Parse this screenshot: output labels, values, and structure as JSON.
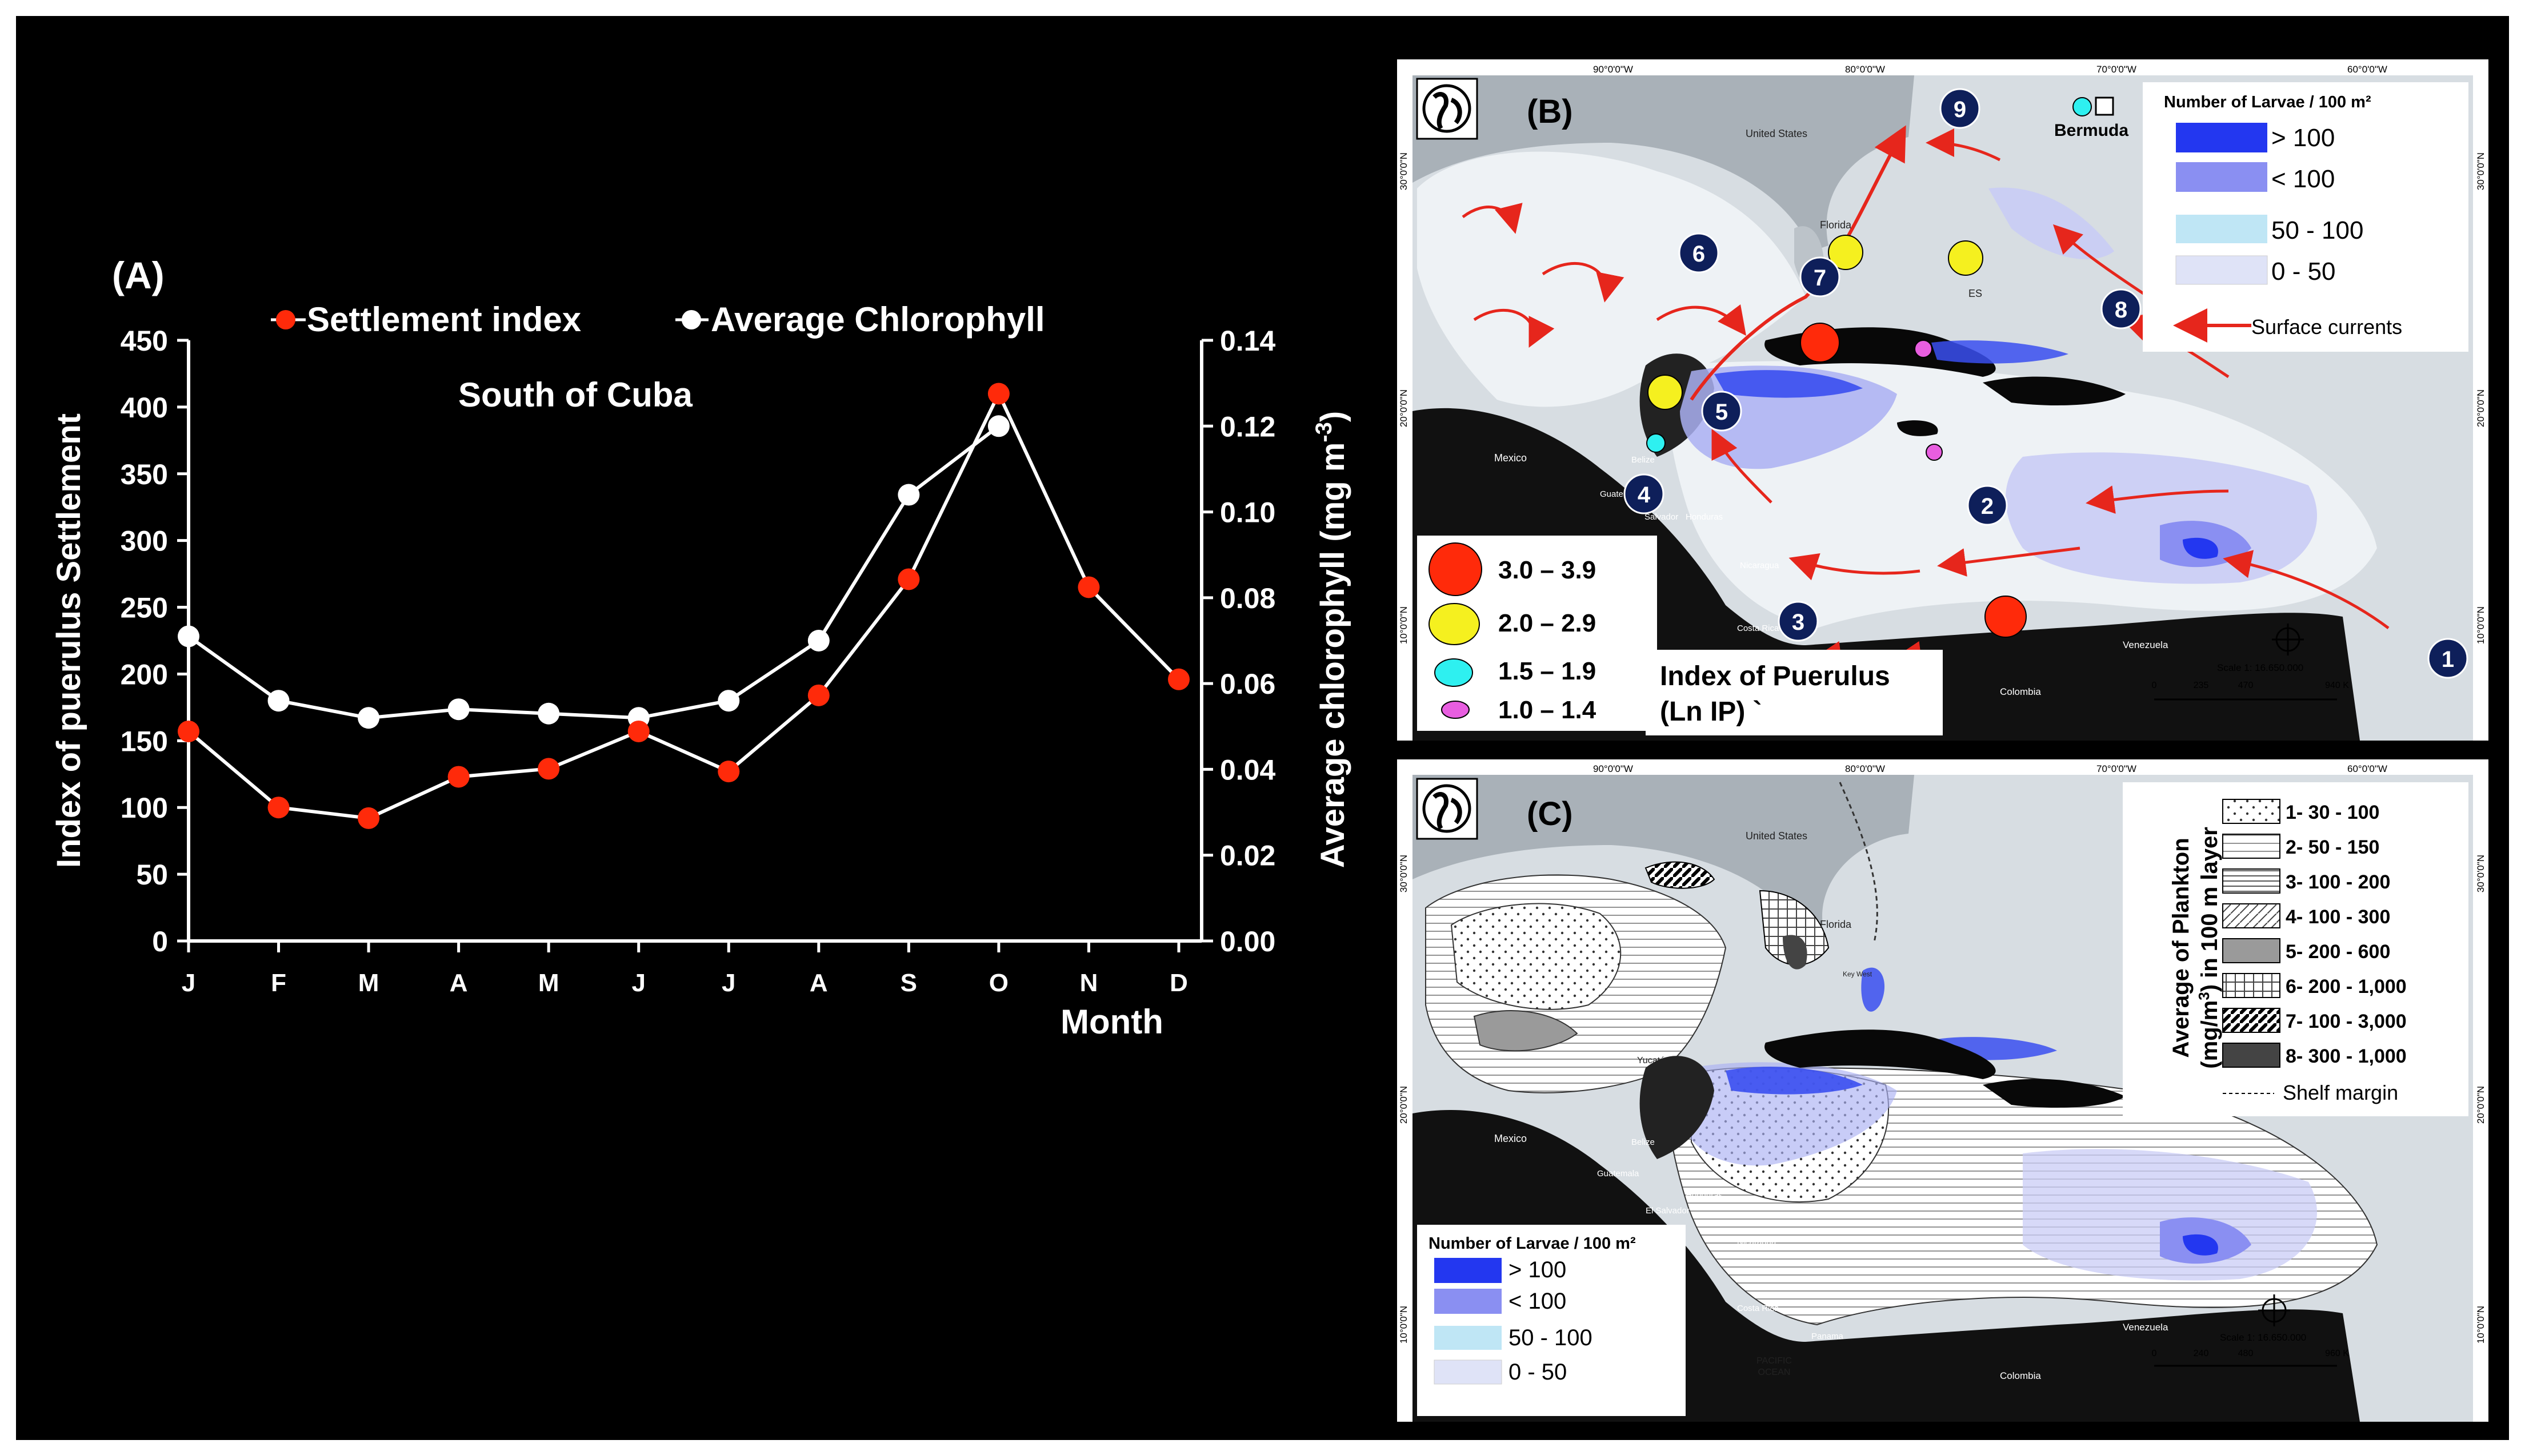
{
  "chart_data": [
    {
      "type": "line",
      "panel_label": "(A)",
      "annotation": "South of Cuba",
      "xlabel": "Month",
      "ylabel_left": "Index of puerulus Settlement",
      "ylabel_right_main": "Average chlorophyll (mg m",
      "ylabel_right_sup": "-3",
      "ylabel_right_close": ")",
      "categories": [
        "J",
        "F",
        "M",
        "A",
        "M",
        "J",
        "J",
        "A",
        "S",
        "O",
        "N",
        "D"
      ],
      "ylim_left": [
        0,
        450
      ],
      "yticks_left": [
        "0",
        "50",
        "100",
        "150",
        "200",
        "250",
        "300",
        "350",
        "400",
        "450"
      ],
      "ylim_right": [
        0,
        0.14
      ],
      "yticks_right": [
        "0.00",
        "0.02",
        "0.04",
        "0.06",
        "0.08",
        "0.10",
        "0.12",
        "0.14"
      ],
      "series": [
        {
          "name": "Settlement index",
          "axis": "left",
          "color": "#ff2a0a",
          "values": [
            157,
            100,
            92,
            123,
            129,
            157,
            127,
            184,
            271,
            410,
            265,
            196
          ]
        },
        {
          "name": "Average Chlorophyll",
          "axis": "right",
          "color": "#ffffff",
          "values": [
            0.071,
            0.056,
            0.052,
            0.054,
            0.053,
            0.052,
            0.056,
            0.07,
            0.104,
            0.12,
            null,
            null
          ]
        }
      ]
    }
  ],
  "map_b": {
    "label": "(B)",
    "geo_labels": [
      "United States",
      "Florida",
      "Bermuda",
      "Mexico",
      "Belize",
      "Guatemala",
      "Honduras",
      "Salvador",
      "Nicaragua",
      "Costa Rica",
      "Venezuela",
      "Colombia",
      "ES",
      "Yucatán"
    ],
    "lon_labels": [
      "90°0'0\"W",
      "80°0'0\"W",
      "70°0'0\"W",
      "60°0'0\"W"
    ],
    "lat_labels": [
      "30°0'0\"N",
      "20°0'0\"N",
      "10°0'0\"N"
    ],
    "sites": [
      "1",
      "2",
      "3",
      "4",
      "5",
      "6",
      "7",
      "8",
      "9"
    ],
    "legend_larvae": {
      "title": "Number of Larvae / 100 m²",
      "items": [
        {
          "label": "> 100",
          "color": "#2337f0"
        },
        {
          "label": "< 100",
          "color": "#8a8ff2"
        },
        {
          "label": "50 - 100",
          "color": "#bfe6f5"
        },
        {
          "label": "0 - 50",
          "color": "#dfe3f7"
        }
      ],
      "currents_label": "Surface currents"
    },
    "legend_ip": {
      "title_line1": "Index of Puerulus",
      "title_line2": "(Ln IP) `",
      "items": [
        {
          "label": "3.0 – 3.9",
          "color": "#ff2a0a"
        },
        {
          "label": "2.0 – 2.9",
          "color": "#f5f01f"
        },
        {
          "label": "1.5 – 1.9",
          "color": "#2ef0f0"
        },
        {
          "label": "1.0 – 1.4",
          "color": "#e85ee0"
        }
      ]
    },
    "scale_text": "Scale 1: 16.650.000",
    "scale_ticks": [
      "0",
      "235",
      "470",
      "940 K"
    ]
  },
  "map_c": {
    "label": "(C)",
    "geo_labels": [
      "United States",
      "Florida",
      "Key West",
      "Yucatán",
      "Mexico",
      "Belize",
      "Guatemala",
      "Honduras",
      "El Salvador",
      "Nicaragua",
      "Costa Rica",
      "Panama",
      "Colombia",
      "Venezuela",
      "PACIFIC",
      "OCEAN"
    ],
    "lon_labels": [
      "90°0'0\"W",
      "80°0'0\"W",
      "70°0'0\"W",
      "60°0'0\"W"
    ],
    "lat_labels": [
      "30°0'0\"N",
      "20°0'0\"N",
      "10°0'0\"N"
    ],
    "legend_plankton": {
      "title_line1": "Average of Plankton",
      "title_line2": "(mg/m",
      "title_line2_sup": "3",
      "title_line2_end": ") in 100 m layer",
      "items": [
        "1-  30 - 100",
        "2-  50 - 150",
        "3-  100 - 200",
        "4-  100 - 300",
        "5-  200 - 600",
        "6-  200 - 1,000",
        "7-  100 - 3,000",
        "8-  300 - 1,000"
      ],
      "shelf_label": "Shelf margin"
    },
    "legend_larvae": {
      "title": "Number of Larvae / 100 m²",
      "items": [
        {
          "label": "> 100",
          "color": "#2337f0"
        },
        {
          "label": "< 100",
          "color": "#8a8ff2"
        },
        {
          "label": "50 - 100",
          "color": "#bfe6f5"
        },
        {
          "label": "0 - 50",
          "color": "#dfe3f7"
        }
      ]
    },
    "scale_text": "Scale 1: 16.650.000",
    "scale_ticks": [
      "0",
      "240",
      "480",
      "960 K"
    ]
  }
}
